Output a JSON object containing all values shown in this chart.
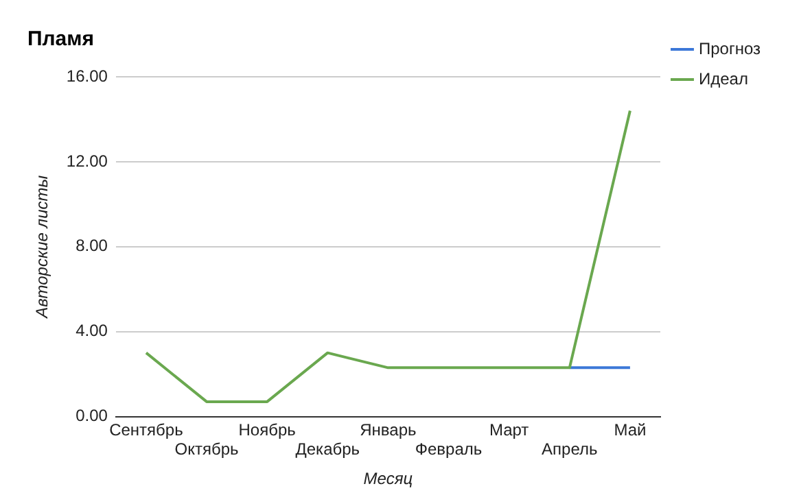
{
  "chart_data": {
    "type": "line",
    "title": "Пламя",
    "xlabel": "Месяц",
    "ylabel": "Авторские листы",
    "categories": [
      "Сентябрь",
      "Октябрь",
      "Ноябрь",
      "Декабрь",
      "Январь",
      "Февраль",
      "Март",
      "Апрель",
      "Май"
    ],
    "series": [
      {
        "name": "Прогноз",
        "color": "#3c78d8",
        "values": [
          null,
          null,
          null,
          null,
          null,
          null,
          null,
          2.3,
          2.3
        ]
      },
      {
        "name": "Идеал",
        "color": "#6aa84f",
        "values": [
          3.0,
          0.7,
          0.7,
          3.0,
          2.3,
          2.3,
          2.3,
          2.3,
          14.4
        ]
      }
    ],
    "ylim": [
      0,
      16
    ],
    "yticks": [
      {
        "value": 0,
        "label": "0.00"
      },
      {
        "value": 4,
        "label": "4.00"
      },
      {
        "value": 8,
        "label": "8.00"
      },
      {
        "value": 12,
        "label": "12.00"
      },
      {
        "value": 16,
        "label": "16.00"
      }
    ],
    "grid": "y",
    "legend": "top right",
    "marker": "none",
    "line_style": "solid"
  }
}
